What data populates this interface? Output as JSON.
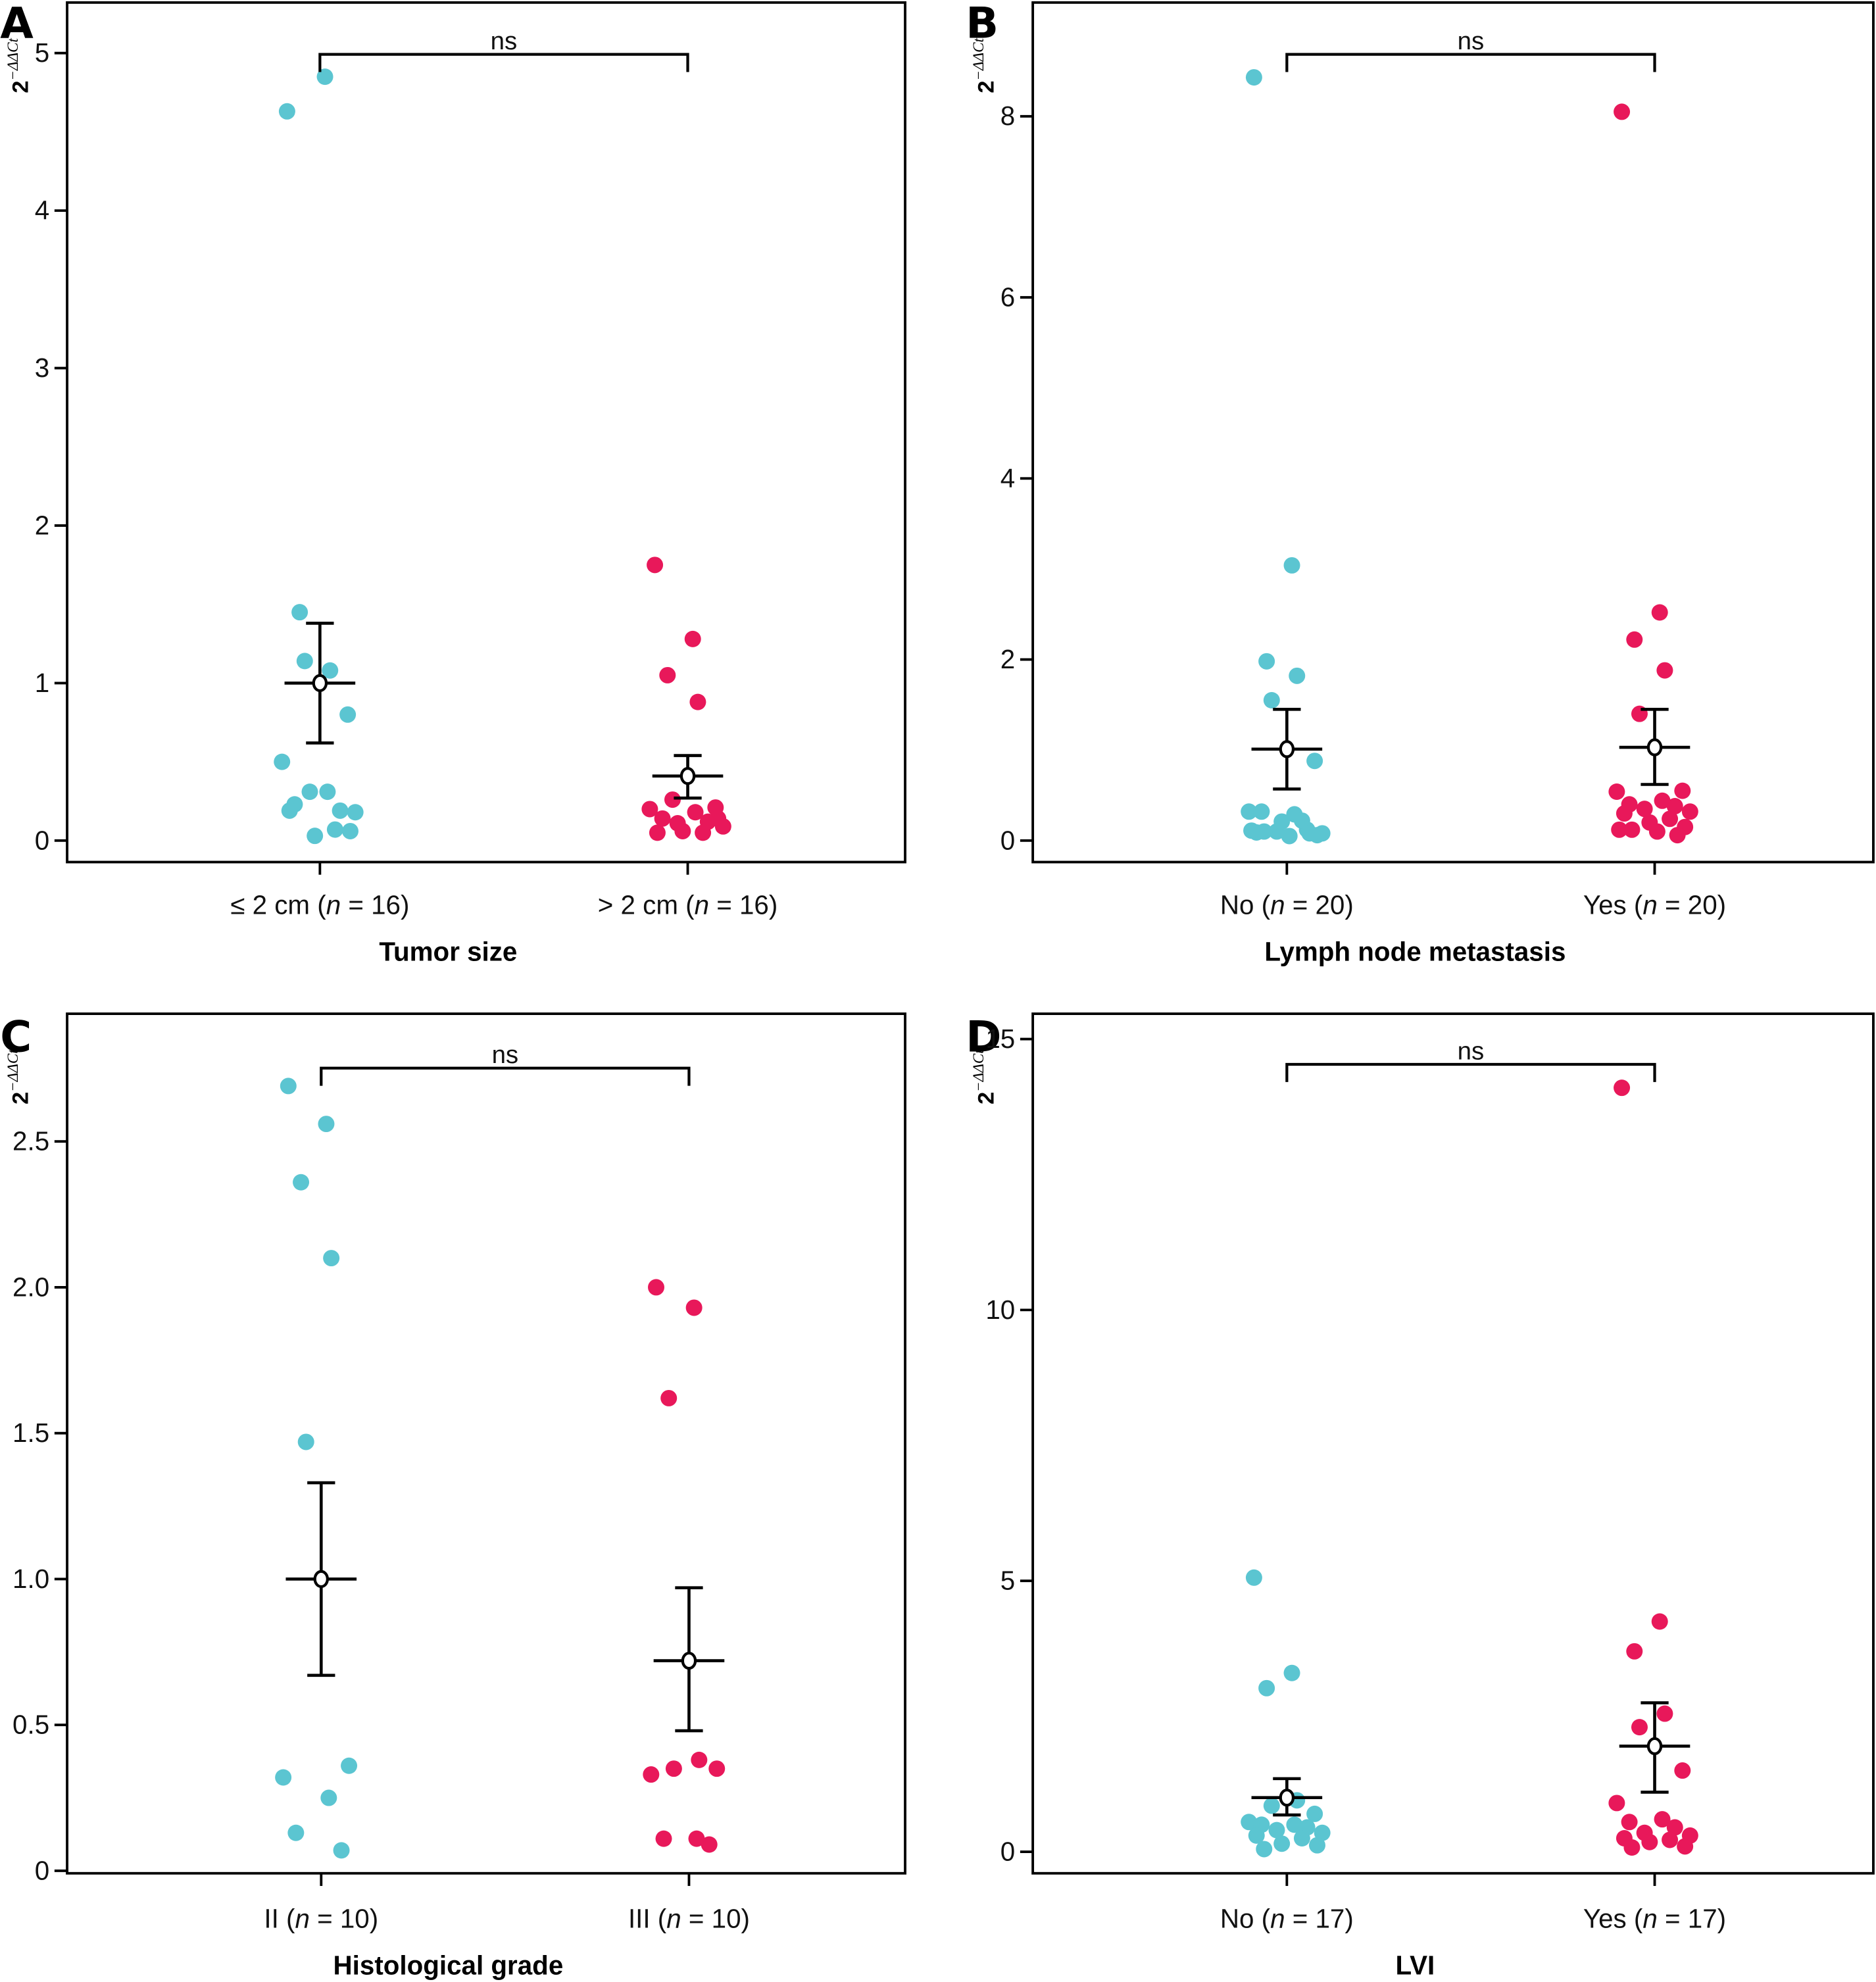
{
  "chart_data": [
    {
      "panel": "A",
      "type": "scatter",
      "subtype": "dot-plot-with-mean-and-error-bars",
      "ylabel": "2^-ΔΔCt",
      "ylabel_base": "2",
      "ylabel_exp": "−ΔΔCt",
      "xlabel": "Tumor size",
      "ylim": [
        0,
        5
      ],
      "yticks": [
        0,
        1,
        2,
        3,
        4,
        5
      ],
      "ytick_labels": [
        "0",
        "1",
        "2",
        "3",
        "4",
        "5"
      ],
      "significance": "ns",
      "groups": [
        {
          "label_prefix": "≤ 2 cm (",
          "label_n": "n",
          "label_suffix": " = 16)",
          "color": "#5bc5d1",
          "values": [
            4.63,
            4.85,
            1.45,
            1.08,
            1.14,
            0.8,
            0.5,
            0.31,
            0.23,
            0.19,
            0.31,
            0.18,
            0.19,
            0.07,
            0.03,
            0.06
          ],
          "mean": 1.0,
          "err_low": 0.62,
          "err_high": 1.38
        },
        {
          "label_prefix": "> 2 cm (",
          "label_n": "n",
          "label_suffix": " = 16)",
          "color": "#e8185a",
          "values": [
            1.75,
            1.28,
            1.05,
            0.88,
            0.26,
            0.21,
            0.2,
            0.18,
            0.14,
            0.12,
            0.11,
            0.09,
            0.05,
            0.05,
            0.06,
            0.14
          ],
          "mean": 0.41,
          "err_low": 0.27,
          "err_high": 0.54
        }
      ]
    },
    {
      "panel": "B",
      "type": "scatter",
      "subtype": "dot-plot-with-mean-and-error-bars",
      "ylabel": "2^-ΔΔCt",
      "ylabel_base": "2",
      "ylabel_exp": "−ΔΔCt",
      "xlabel": "Lymph node metastasis",
      "ylim": [
        0,
        8.8
      ],
      "yticks": [
        0,
        2,
        4,
        6,
        8
      ],
      "ytick_labels": [
        "0",
        "2",
        "4",
        "6",
        "8"
      ],
      "significance": "ns",
      "groups": [
        {
          "label_prefix": "No (",
          "label_n": "n",
          "label_suffix": " = 20)",
          "color": "#5bc5d1",
          "values": [
            8.43,
            3.04,
            1.98,
            1.82,
            1.55,
            0.88,
            0.32,
            0.29,
            0.32,
            0.12,
            0.1,
            0.08,
            0.09,
            0.22,
            0.21,
            0.06,
            0.1,
            0.05,
            0.11,
            0.08
          ],
          "mean": 1.01,
          "err_low": 0.57,
          "err_high": 1.45
        },
        {
          "label_prefix": "Yes (",
          "label_n": "n",
          "label_suffix": " = 20)",
          "color": "#e8185a",
          "values": [
            8.05,
            2.52,
            2.22,
            1.88,
            1.4,
            0.55,
            0.54,
            0.44,
            0.4,
            0.38,
            0.35,
            0.32,
            0.3,
            0.24,
            0.2,
            0.15,
            0.12,
            0.1,
            0.12,
            0.06
          ],
          "mean": 1.03,
          "err_low": 0.62,
          "err_high": 1.45
        }
      ]
    },
    {
      "panel": "C",
      "type": "scatter",
      "subtype": "dot-plot-with-mean-and-error-bars",
      "ylabel": "2^-ΔΔCt",
      "ylabel_base": "2",
      "ylabel_exp": "−ΔΔCt",
      "xlabel": "Histological grade",
      "ylim": [
        0,
        2.8
      ],
      "yticks": [
        0,
        0.5,
        1.0,
        1.5,
        2.0,
        2.5
      ],
      "ytick_labels": [
        "0",
        "0.5",
        "1.0",
        "1.5",
        "2.0",
        "2.5"
      ],
      "significance": "ns",
      "groups": [
        {
          "label_prefix": "II (",
          "label_n": "n",
          "label_suffix": " = 10)",
          "color": "#5bc5d1",
          "values": [
            2.69,
            2.56,
            2.36,
            2.1,
            1.47,
            0.36,
            0.32,
            0.25,
            0.13,
            0.07
          ],
          "mean": 1.0,
          "err_low": 0.67,
          "err_high": 1.33
        },
        {
          "label_prefix": "III (",
          "label_n": "n",
          "label_suffix": " = 10)",
          "color": "#e8185a",
          "values": [
            2.0,
            1.93,
            1.62,
            0.38,
            0.35,
            0.35,
            0.33,
            0.11,
            0.11,
            0.09
          ],
          "mean": 0.72,
          "err_low": 0.48,
          "err_high": 0.97
        }
      ]
    },
    {
      "panel": "D",
      "type": "scatter",
      "subtype": "dot-plot-with-mean-and-error-bars",
      "ylabel": "2^-ΔΔCt",
      "ylabel_base": "2",
      "ylabel_exp": "−ΔΔCt",
      "xlabel": "LVI",
      "ylim": [
        0,
        15
      ],
      "yticks": [
        0,
        5,
        10,
        15
      ],
      "ytick_labels": [
        "0",
        "5",
        "10",
        "15"
      ],
      "significance": "ns",
      "groups": [
        {
          "label_prefix": "No (",
          "label_n": "n",
          "label_suffix": " = 17)",
          "color": "#5bc5d1",
          "values": [
            5.06,
            3.3,
            3.02,
            0.95,
            0.85,
            0.7,
            0.55,
            0.5,
            0.5,
            0.45,
            0.4,
            0.35,
            0.3,
            0.25,
            0.15,
            0.12,
            0.05
          ],
          "mean": 1.0,
          "err_low": 0.68,
          "err_high": 1.35
        },
        {
          "label_prefix": "Yes (",
          "label_n": "n",
          "label_suffix": " = 17)",
          "color": "#e8185a",
          "values": [
            14.1,
            4.25,
            3.7,
            2.55,
            2.3,
            1.5,
            0.9,
            0.6,
            0.55,
            0.45,
            0.35,
            0.3,
            0.25,
            0.22,
            0.18,
            0.1,
            0.08
          ],
          "mean": 1.95,
          "err_low": 1.1,
          "err_high": 2.75
        }
      ]
    }
  ]
}
